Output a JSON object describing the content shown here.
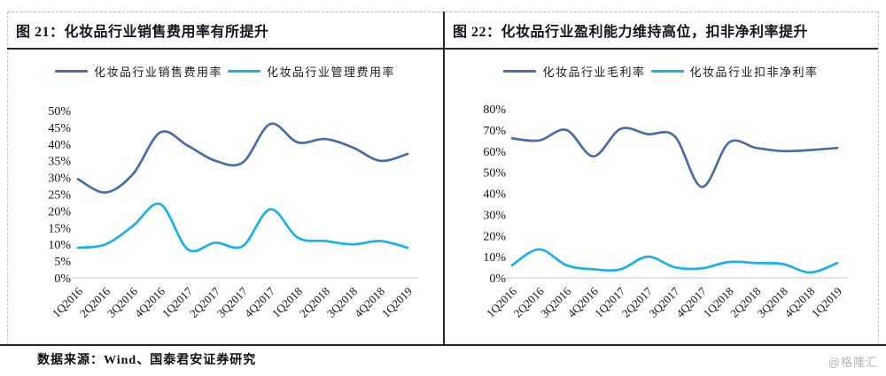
{
  "figure": {
    "footer": "数据来源：Wind、国泰君安证券研究",
    "watermark": "@格隆汇"
  },
  "chart_data": [
    {
      "type": "line",
      "title": "图 21：化妆品行业销售费用率有所提升",
      "categories": [
        "1Q2016",
        "2Q2016",
        "3Q2016",
        "4Q2016",
        "1Q2017",
        "2Q2017",
        "3Q2017",
        "4Q2017",
        "1Q2018",
        "2Q2018",
        "3Q2018",
        "4Q2018",
        "1Q2019"
      ],
      "series": [
        {
          "name": "化妆品行业销售费用率",
          "color": "#4a6da7",
          "values": [
            29.5,
            25.5,
            31,
            43.5,
            39.5,
            35,
            34.5,
            46,
            40.5,
            41.5,
            39,
            35,
            37
          ]
        },
        {
          "name": "化妆品行业管理费用率",
          "color": "#18b0ee",
          "values": [
            9,
            10,
            15.5,
            22,
            8.5,
            10.5,
            9.5,
            20.5,
            12,
            11,
            10,
            11,
            9
          ]
        }
      ],
      "xlabel": "",
      "ylabel": "",
      "ylim": [
        0,
        50
      ],
      "ytick_step": 5,
      "ytick_labels": [
        "0%",
        "5%",
        "10%",
        "15%",
        "20%",
        "25%",
        "30%",
        "35%",
        "40%",
        "45%",
        "50%"
      ],
      "legend_position": "top",
      "grid": false
    },
    {
      "type": "line",
      "title": "图 22：化妆品行业盈利能力维持高位，扣非净利率提升",
      "categories": [
        "1Q2016",
        "2Q2016",
        "3Q2016",
        "4Q2016",
        "1Q2017",
        "2Q2017",
        "3Q2017",
        "4Q2017",
        "1Q2018",
        "2Q2018",
        "3Q2018",
        "4Q2018",
        "1Q2019"
      ],
      "series": [
        {
          "name": "化妆品行业毛利率",
          "color": "#4a6da7",
          "values": [
            66,
            65,
            70,
            57.5,
            70.5,
            68,
            67,
            43,
            64,
            61.5,
            60,
            60.5,
            61.5
          ]
        },
        {
          "name": "化妆品行业扣非净利率",
          "color": "#18b0ee",
          "values": [
            6,
            13.5,
            6,
            4,
            4,
            10,
            5,
            4.5,
            7.5,
            7,
            6.5,
            2.5,
            7
          ]
        }
      ],
      "xlabel": "",
      "ylabel": "",
      "ylim": [
        0,
        80
      ],
      "ytick_step": 10,
      "ytick_labels": [
        "0%",
        "10%",
        "20%",
        "30%",
        "40%",
        "50%",
        "60%",
        "70%",
        "80%"
      ],
      "legend_position": "top",
      "grid": false
    }
  ]
}
